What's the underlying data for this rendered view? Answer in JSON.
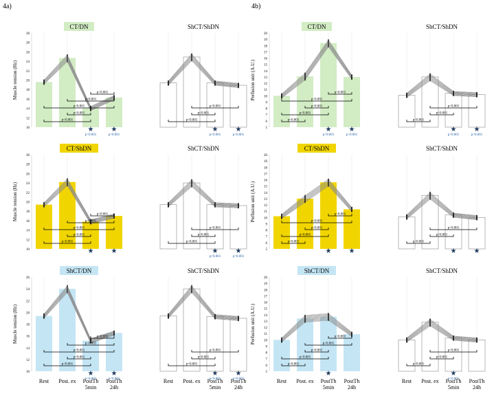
{
  "sections": {
    "a": "4a)",
    "b": "4b)"
  },
  "colors": {
    "green": "#d2ecc4",
    "yellow": "#f1d500",
    "blue": "#c4e5f4",
    "white": "#ffffff",
    "sig_star": "#1f3a5f",
    "sig_text": "#1f5fa8"
  },
  "chart_data": [
    {
      "type": "bar",
      "panel": "4a-row1-left",
      "title": "CT/DN",
      "title_fill": "green",
      "ylabel": "Muscle tension (Hz)",
      "ylim": [
        10,
        30
      ],
      "yticks": [
        10,
        12,
        14,
        16,
        18,
        20,
        22,
        24,
        26,
        28,
        30
      ],
      "categories": [
        "Rest",
        "Post. ex",
        "PostTh 5min",
        "PostTh 24h"
      ],
      "values": [
        19.6,
        24.7,
        14.0,
        16.3
      ],
      "bar_fill": "green",
      "brackets": [
        {
          "from": 0,
          "to": 2,
          "label": "p<0.001"
        },
        {
          "from": 1,
          "to": 2,
          "label": "p<0.001"
        },
        {
          "from": 0,
          "to": 3,
          "label": "p<0.001"
        },
        {
          "from": 1,
          "to": 3,
          "label": "p<0.001"
        },
        {
          "from": 2,
          "to": 3,
          "label": "p<0.001"
        }
      ],
      "stars": [
        {
          "bar": 2,
          "label": "p<0.001"
        },
        {
          "bar": 3,
          "label": "p<0.001"
        }
      ]
    },
    {
      "type": "bar",
      "panel": "4a-row1-right",
      "title": "ShCT/ShDN",
      "title_fill": "none",
      "ylabel": "",
      "ylim": [
        10,
        30
      ],
      "categories": [
        "Rest",
        "Post. ex",
        "PostTh 5min",
        "PostTh 24h"
      ],
      "values": [
        19.4,
        24.9,
        19.4,
        18.9
      ],
      "bar_fill": "white",
      "brackets": [
        {
          "from": 0,
          "to": 2,
          "label": "p<0.001"
        },
        {
          "from": 1,
          "to": 2,
          "label": "p<0.001"
        },
        {
          "from": 1,
          "to": 3,
          "label": "p<0.001"
        }
      ],
      "stars": [
        {
          "bar": 2,
          "label": "p<0.001"
        },
        {
          "bar": 3,
          "label": "p<0.001"
        }
      ]
    },
    {
      "type": "bar",
      "panel": "4a-row2-left",
      "title": "CT/ShDN",
      "title_fill": "yellow",
      "ylabel": "Muscle tension (Hz)",
      "ylim": [
        10,
        30
      ],
      "yticks": [
        10,
        12,
        14,
        16,
        18,
        20,
        22,
        24,
        26,
        28,
        30
      ],
      "categories": [
        "Rest",
        "Post. ex",
        "PostTh 5min",
        "PostTh 24h"
      ],
      "values": [
        19.4,
        24.2,
        15.8,
        17.0
      ],
      "bar_fill": "yellow",
      "brackets": [
        {
          "from": 0,
          "to": 2,
          "label": "p<0.001"
        },
        {
          "from": 1,
          "to": 2,
          "label": "p<0.001"
        },
        {
          "from": 0,
          "to": 3,
          "label": "p<0.001"
        },
        {
          "from": 1,
          "to": 3,
          "label": "p<0.001"
        },
        {
          "from": 2,
          "to": 3,
          "label": "p<0.001"
        }
      ],
      "stars": [
        {
          "bar": 2,
          "label": ""
        },
        {
          "bar": 3,
          "label": ""
        }
      ]
    },
    {
      "type": "bar",
      "panel": "4a-row2-right",
      "title": "ShCT/ShDN",
      "title_fill": "none",
      "ylabel": "",
      "ylim": [
        10,
        30
      ],
      "categories": [
        "Rest",
        "Post. ex",
        "PostTh 5min",
        "PostTh 24h"
      ],
      "values": [
        19.4,
        24.0,
        19.4,
        19.2
      ],
      "bar_fill": "white",
      "brackets": [
        {
          "from": 0,
          "to": 2,
          "label": "p<0.001"
        },
        {
          "from": 1,
          "to": 2,
          "label": "p<0.001"
        },
        {
          "from": 1,
          "to": 3,
          "label": "p<0.001"
        }
      ],
      "stars": [
        {
          "bar": 2,
          "label": "p<0.001"
        },
        {
          "bar": 3,
          "label": "p<0.001"
        }
      ]
    },
    {
      "type": "bar",
      "panel": "4a-row3-left",
      "title": "ShCT/DN",
      "title_fill": "blue",
      "ylabel": "Muscle tension (Hz)",
      "ylim": [
        10,
        26
      ],
      "yticks": [
        10,
        12,
        14,
        16,
        18,
        20,
        22,
        24,
        26
      ],
      "categories": [
        "Rest",
        "Post. ex",
        "PostTh 5min",
        "PostTh 24h"
      ],
      "values": [
        19.4,
        24.0,
        15.2,
        16.5
      ],
      "bar_fill": "blue",
      "brackets": [
        {
          "from": 0,
          "to": 2,
          "label": "p<0.001"
        },
        {
          "from": 1,
          "to": 2,
          "label": "p<0.001"
        },
        {
          "from": 0,
          "to": 3,
          "label": "p<0.001"
        },
        {
          "from": 1,
          "to": 3,
          "label": "p<0.001"
        },
        {
          "from": 2,
          "to": 3,
          "label": "p<0.001"
        }
      ],
      "stars": [
        {
          "bar": 2,
          "label": "p<0.001"
        },
        {
          "bar": 3,
          "label": "p<0.001"
        }
      ]
    },
    {
      "type": "bar",
      "panel": "4a-row3-right",
      "title": "ShCT/ShDN",
      "title_fill": "none",
      "ylabel": "",
      "ylim": [
        10,
        26
      ],
      "categories": [
        "Rest",
        "Post. ex",
        "PostTh 5min",
        "PostTh 24h"
      ],
      "values": [
        19.4,
        24.0,
        19.3,
        19.0
      ],
      "bar_fill": "white",
      "brackets": [
        {
          "from": 0,
          "to": 2,
          "label": "p<0.001"
        },
        {
          "from": 1,
          "to": 2,
          "label": "p<0.001"
        },
        {
          "from": 1,
          "to": 3,
          "label": "p<0.001"
        }
      ],
      "stars": [
        {
          "bar": 2,
          "label": "p<0.001"
        },
        {
          "bar": 3,
          "label": "p<0.001"
        }
      ]
    },
    {
      "type": "bar",
      "panel": "4b-row1-left",
      "title": "CT/DN",
      "title_fill": "green",
      "ylabel": "Perfusion unit (A.U.)",
      "ylim": [
        5,
        20
      ],
      "yticks": [
        5,
        6,
        7,
        8,
        9,
        10,
        11,
        12,
        13,
        14,
        15,
        16,
        17,
        18,
        19,
        20
      ],
      "categories": [
        "Rest",
        "Post. ex",
        "PostTh 5min",
        "PostTh 24h"
      ],
      "values": [
        10.0,
        13.1,
        18.4,
        13.0
      ],
      "bar_fill": "green",
      "brackets": [
        {
          "from": 0,
          "to": 1,
          "label": "p<0.001"
        },
        {
          "from": 0,
          "to": 2,
          "label": "p<0.001"
        },
        {
          "from": 1,
          "to": 2,
          "label": "p<0.001"
        },
        {
          "from": 0,
          "to": 3,
          "label": "p<0.001"
        },
        {
          "from": 2,
          "to": 3,
          "label": "p<0.001"
        }
      ],
      "stars": [
        {
          "bar": 2,
          "label": "p<0.001"
        },
        {
          "bar": 3,
          "label": "p<0.001"
        }
      ]
    },
    {
      "type": "bar",
      "panel": "4b-row1-right",
      "title": "ShCT/ShDN",
      "title_fill": "none",
      "ylabel": "",
      "ylim": [
        5,
        20
      ],
      "categories": [
        "Rest",
        "Post. ex",
        "PostTh 5min",
        "PostTh 24h"
      ],
      "values": [
        10.1,
        13.0,
        10.4,
        10.2
      ],
      "bar_fill": "white",
      "brackets": [
        {
          "from": 0,
          "to": 1,
          "label": "p<0.001"
        },
        {
          "from": 1,
          "to": 2,
          "label": "p<0.001"
        },
        {
          "from": 1,
          "to": 3,
          "label": "p<0.001"
        }
      ],
      "stars": [
        {
          "bar": 2,
          "label": "p<0.001"
        },
        {
          "bar": 3,
          "label": "p<0.001"
        }
      ]
    },
    {
      "type": "bar",
      "panel": "4b-row2-left",
      "title": "CT/ShDN",
      "title_fill": "yellow",
      "ylabel": "Perfusion unit (A.U.)",
      "ylim": [
        5,
        20
      ],
      "yticks": [
        5,
        6,
        7,
        8,
        9,
        10,
        11,
        12,
        13,
        14,
        15,
        16,
        17,
        18,
        19,
        20
      ],
      "categories": [
        "Rest",
        "Post. ex",
        "PostTh 5min",
        "PostTh 24h"
      ],
      "values": [
        10.2,
        13.0,
        15.6,
        11.3
      ],
      "bar_fill": "yellow",
      "brackets": [
        {
          "from": 0,
          "to": 1,
          "label": "p<0.001"
        },
        {
          "from": 0,
          "to": 2,
          "label": "p<0.001"
        },
        {
          "from": 1,
          "to": 2,
          "label": "p<0.001"
        },
        {
          "from": 0,
          "to": 3,
          "label": "p<0.001"
        },
        {
          "from": 2,
          "to": 3,
          "label": "p<0.001"
        }
      ],
      "stars": [
        {
          "bar": 2,
          "label": ""
        },
        {
          "bar": 3,
          "label": ""
        }
      ]
    },
    {
      "type": "bar",
      "panel": "4b-row2-right",
      "title": "ShCT/ShDN",
      "title_fill": "none",
      "ylabel": "",
      "ylim": [
        5,
        20
      ],
      "categories": [
        "Rest",
        "Post. ex",
        "PostTh 5min",
        "PostTh 24h"
      ],
      "values": [
        10.1,
        13.5,
        10.4,
        10.0
      ],
      "bar_fill": "white",
      "brackets": [
        {
          "from": 0,
          "to": 1,
          "label": "p<0.001"
        },
        {
          "from": 1,
          "to": 2,
          "label": "p<0.001"
        },
        {
          "from": 1,
          "to": 3,
          "label": "p<0.001"
        }
      ],
      "stars": [
        {
          "bar": 2,
          "label": ""
        },
        {
          "bar": 3,
          "label": ""
        }
      ]
    },
    {
      "type": "bar",
      "panel": "4b-row3-left",
      "title": "ShCT/DN",
      "title_fill": "blue",
      "ylabel": "Perfusion unit (A.U.)",
      "ylim": [
        5,
        20
      ],
      "yticks": [
        5,
        6,
        7,
        8,
        9,
        10,
        11,
        12,
        13,
        14,
        15,
        16,
        17,
        18,
        19,
        20
      ],
      "categories": [
        "Rest",
        "Post. ex",
        "PostTh 5min",
        "PostTh 24h"
      ],
      "values": [
        10.0,
        13.4,
        13.7,
        10.9
      ],
      "bar_fill": "blue",
      "brackets": [
        {
          "from": 0,
          "to": 1,
          "label": "p<0.001"
        },
        {
          "from": 0,
          "to": 2,
          "label": "p<0.001"
        },
        {
          "from": 1,
          "to": 2,
          "label": "p<0.001"
        },
        {
          "from": 1,
          "to": 3,
          "label": "p<0.001"
        },
        {
          "from": 2,
          "to": 3,
          "label": "p<0.001"
        }
      ],
      "stars": [
        {
          "bar": 2,
          "label": ""
        }
      ]
    },
    {
      "type": "bar",
      "panel": "4b-row3-right",
      "title": "ShCT/ShDN",
      "title_fill": "none",
      "ylabel": "",
      "ylim": [
        5,
        20
      ],
      "categories": [
        "Rest",
        "Post. ex",
        "PostTh 5min",
        "PostTh 24h"
      ],
      "values": [
        10.0,
        12.8,
        10.3,
        10.0
      ],
      "bar_fill": "white",
      "brackets": [
        {
          "from": 0,
          "to": 1,
          "label": "p<0.001"
        },
        {
          "from": 1,
          "to": 2,
          "label": "p<0.001"
        },
        {
          "from": 1,
          "to": 3,
          "label": "p<0.001"
        }
      ],
      "stars": [
        {
          "bar": 2,
          "label": "p<0.001"
        }
      ]
    }
  ],
  "x_labels": [
    [
      "Rest"
    ],
    [
      "Post. ex"
    ],
    [
      "PostTh",
      "5min"
    ],
    [
      "PostTh",
      "24h"
    ]
  ]
}
